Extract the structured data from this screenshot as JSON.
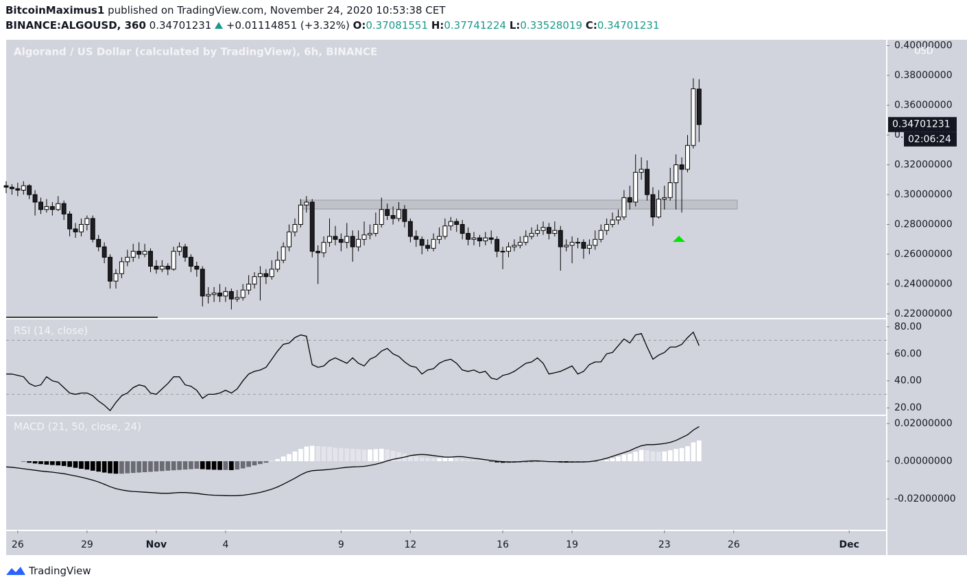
{
  "header": {
    "author": "BitcoinMaximus1",
    "published": "published on TradingView.com, November 24, 2020 10:53:38 CET",
    "symbol": "BINANCE:ALGOUSD, 360",
    "change": "+0.01114851 (+3.32%)",
    "o_label": "O:",
    "h_label": "H:",
    "l_label": "L:",
    "c_label": "C:"
  },
  "footer": {
    "brand": "TradingView"
  },
  "chart_data": [
    {
      "type": "candlestick",
      "title": "Algorand / US Dollar (calculated by TradingView), 6h, BINANCE",
      "currency": "USD",
      "countdown": "02:06:24",
      "up_color": "#ffffff",
      "down_color": "#1e1e24",
      "wick_color": "#000000",
      "xlim": [
        0,
        152.5
      ],
      "xticks": [
        {
          "value": 2,
          "label": "26"
        },
        {
          "value": 14,
          "label": "29"
        },
        {
          "value": 26,
          "label": "Nov"
        },
        {
          "value": 38,
          "label": "4"
        },
        {
          "value": 58,
          "label": "9"
        },
        {
          "value": 70,
          "label": "12"
        },
        {
          "value": 86,
          "label": "16"
        },
        {
          "value": 98,
          "label": "19"
        },
        {
          "value": 114,
          "label": "23"
        },
        {
          "value": 126,
          "label": "26"
        },
        {
          "value": 146,
          "label": "Dec"
        }
      ],
      "ylim": [
        0.2168,
        0.4039
      ],
      "yticks": [
        {
          "value": 0.22,
          "label": "0.22000000"
        },
        {
          "value": 0.24,
          "label": "0.24000000"
        },
        {
          "value": 0.26,
          "label": "0.26000000"
        },
        {
          "value": 0.28,
          "label": "0.28000000"
        },
        {
          "value": 0.3,
          "label": "0.30000000"
        },
        {
          "value": 0.32,
          "label": "0.32000000"
        },
        {
          "value": 0.34,
          "label": "0.34000000"
        },
        {
          "value": 0.36,
          "label": "0.36000000"
        },
        {
          "value": 0.38,
          "label": "0.38000000"
        },
        {
          "value": 0.4,
          "label": "0.40000000"
        }
      ],
      "ohlc": [
        [
          0.306,
          0.309,
          0.301,
          0.305
        ],
        [
          0.305,
          0.307,
          0.3,
          0.304
        ],
        [
          0.304,
          0.308,
          0.299,
          0.303
        ],
        [
          0.303,
          0.309,
          0.3,
          0.306
        ],
        [
          0.306,
          0.307,
          0.297,
          0.3
        ],
        [
          0.3,
          0.303,
          0.286,
          0.295
        ],
        [
          0.295,
          0.298,
          0.287,
          0.29
        ],
        [
          0.29,
          0.297,
          0.288,
          0.292
        ],
        [
          0.292,
          0.295,
          0.286,
          0.29
        ],
        [
          0.29,
          0.299,
          0.289,
          0.294
        ],
        [
          0.294,
          0.296,
          0.283,
          0.287
        ],
        [
          0.287,
          0.289,
          0.272,
          0.277
        ],
        [
          0.277,
          0.281,
          0.271,
          0.275
        ],
        [
          0.275,
          0.284,
          0.272,
          0.28
        ],
        [
          0.28,
          0.286,
          0.276,
          0.284
        ],
        [
          0.284,
          0.286,
          0.268,
          0.27
        ],
        [
          0.27,
          0.273,
          0.262,
          0.265
        ],
        [
          0.265,
          0.268,
          0.254,
          0.258
        ],
        [
          0.258,
          0.26,
          0.237,
          0.242
        ],
        [
          0.242,
          0.25,
          0.237,
          0.247
        ],
        [
          0.247,
          0.258,
          0.244,
          0.255
        ],
        [
          0.255,
          0.263,
          0.252,
          0.258
        ],
        [
          0.258,
          0.267,
          0.255,
          0.262
        ],
        [
          0.262,
          0.268,
          0.257,
          0.26
        ],
        [
          0.26,
          0.267,
          0.258,
          0.262
        ],
        [
          0.262,
          0.264,
          0.248,
          0.252
        ],
        [
          0.252,
          0.256,
          0.247,
          0.25
        ],
        [
          0.25,
          0.256,
          0.248,
          0.252
        ],
        [
          0.252,
          0.254,
          0.246,
          0.25
        ],
        [
          0.25,
          0.265,
          0.249,
          0.262
        ],
        [
          0.262,
          0.268,
          0.259,
          0.265
        ],
        [
          0.265,
          0.267,
          0.255,
          0.258
        ],
        [
          0.258,
          0.26,
          0.248,
          0.252
        ],
        [
          0.252,
          0.255,
          0.245,
          0.25
        ],
        [
          0.25,
          0.252,
          0.225,
          0.232
        ],
        [
          0.232,
          0.238,
          0.227,
          0.233
        ],
        [
          0.233,
          0.238,
          0.228,
          0.234
        ],
        [
          0.234,
          0.24,
          0.228,
          0.232
        ],
        [
          0.232,
          0.238,
          0.228,
          0.235
        ],
        [
          0.235,
          0.237,
          0.223,
          0.23
        ],
        [
          0.23,
          0.236,
          0.228,
          0.231
        ],
        [
          0.231,
          0.24,
          0.229,
          0.236
        ],
        [
          0.236,
          0.246,
          0.233,
          0.24
        ],
        [
          0.24,
          0.248,
          0.237,
          0.245
        ],
        [
          0.245,
          0.252,
          0.229,
          0.247
        ],
        [
          0.247,
          0.25,
          0.24,
          0.245
        ],
        [
          0.245,
          0.256,
          0.243,
          0.25
        ],
        [
          0.25,
          0.262,
          0.248,
          0.256
        ],
        [
          0.256,
          0.268,
          0.254,
          0.265
        ],
        [
          0.265,
          0.28,
          0.262,
          0.275
        ],
        [
          0.275,
          0.284,
          0.272,
          0.28
        ],
        [
          0.28,
          0.297,
          0.278,
          0.293
        ],
        [
          0.293,
          0.299,
          0.288,
          0.295
        ],
        [
          0.295,
          0.297,
          0.258,
          0.262
        ],
        [
          0.262,
          0.266,
          0.24,
          0.261
        ],
        [
          0.261,
          0.272,
          0.258,
          0.268
        ],
        [
          0.268,
          0.284,
          0.265,
          0.272
        ],
        [
          0.272,
          0.279,
          0.266,
          0.27
        ],
        [
          0.27,
          0.274,
          0.262,
          0.268
        ],
        [
          0.268,
          0.281,
          0.264,
          0.272
        ],
        [
          0.272,
          0.276,
          0.255,
          0.265
        ],
        [
          0.265,
          0.276,
          0.262,
          0.27
        ],
        [
          0.27,
          0.282,
          0.266,
          0.273
        ],
        [
          0.273,
          0.28,
          0.27,
          0.274
        ],
        [
          0.274,
          0.288,
          0.272,
          0.28
        ],
        [
          0.28,
          0.298,
          0.278,
          0.29
        ],
        [
          0.29,
          0.294,
          0.283,
          0.286
        ],
        [
          0.286,
          0.292,
          0.28,
          0.284
        ],
        [
          0.284,
          0.295,
          0.282,
          0.29
        ],
        [
          0.29,
          0.293,
          0.278,
          0.282
        ],
        [
          0.282,
          0.284,
          0.268,
          0.272
        ],
        [
          0.272,
          0.276,
          0.265,
          0.27
        ],
        [
          0.27,
          0.272,
          0.26,
          0.266
        ],
        [
          0.266,
          0.27,
          0.262,
          0.264
        ],
        [
          0.264,
          0.274,
          0.262,
          0.27
        ],
        [
          0.27,
          0.278,
          0.267,
          0.272
        ],
        [
          0.272,
          0.284,
          0.27,
          0.279
        ],
        [
          0.279,
          0.285,
          0.276,
          0.282
        ],
        [
          0.282,
          0.284,
          0.275,
          0.28
        ],
        [
          0.28,
          0.283,
          0.27,
          0.274
        ],
        [
          0.274,
          0.278,
          0.266,
          0.27
        ],
        [
          0.27,
          0.275,
          0.266,
          0.271
        ],
        [
          0.271,
          0.273,
          0.265,
          0.269
        ],
        [
          0.269,
          0.275,
          0.266,
          0.271
        ],
        [
          0.271,
          0.276,
          0.267,
          0.27
        ],
        [
          0.27,
          0.272,
          0.258,
          0.262
        ],
        [
          0.262,
          0.265,
          0.25,
          0.262
        ],
        [
          0.262,
          0.268,
          0.258,
          0.265
        ],
        [
          0.265,
          0.27,
          0.262,
          0.266
        ],
        [
          0.266,
          0.272,
          0.264,
          0.268
        ],
        [
          0.268,
          0.276,
          0.266,
          0.272
        ],
        [
          0.272,
          0.278,
          0.27,
          0.274
        ],
        [
          0.274,
          0.28,
          0.272,
          0.276
        ],
        [
          0.276,
          0.282,
          0.273,
          0.278
        ],
        [
          0.278,
          0.281,
          0.27,
          0.274
        ],
        [
          0.274,
          0.282,
          0.272,
          0.276
        ],
        [
          0.276,
          0.279,
          0.249,
          0.265
        ],
        [
          0.265,
          0.27,
          0.262,
          0.266
        ],
        [
          0.266,
          0.272,
          0.254,
          0.268
        ],
        [
          0.268,
          0.271,
          0.264,
          0.268
        ],
        [
          0.268,
          0.27,
          0.257,
          0.264
        ],
        [
          0.264,
          0.27,
          0.26,
          0.266
        ],
        [
          0.266,
          0.276,
          0.263,
          0.27
        ],
        [
          0.27,
          0.28,
          0.268,
          0.276
        ],
        [
          0.276,
          0.284,
          0.273,
          0.28
        ],
        [
          0.28,
          0.288,
          0.278,
          0.283
        ],
        [
          0.283,
          0.29,
          0.28,
          0.285
        ],
        [
          0.285,
          0.303,
          0.283,
          0.298
        ],
        [
          0.298,
          0.306,
          0.29,
          0.295
        ],
        [
          0.295,
          0.327,
          0.292,
          0.315
        ],
        [
          0.315,
          0.325,
          0.31,
          0.317
        ],
        [
          0.317,
          0.323,
          0.296,
          0.3
        ],
        [
          0.3,
          0.305,
          0.279,
          0.285
        ],
        [
          0.285,
          0.303,
          0.284,
          0.297
        ],
        [
          0.297,
          0.306,
          0.29,
          0.298
        ],
        [
          0.298,
          0.318,
          0.296,
          0.308
        ],
        [
          0.308,
          0.327,
          0.29,
          0.32
        ],
        [
          0.32,
          0.325,
          0.288,
          0.317
        ],
        [
          0.317,
          0.34,
          0.315,
          0.333
        ],
        [
          0.333,
          0.378,
          0.331,
          0.371
        ],
        [
          0.37081551,
          0.37741224,
          0.33528019,
          0.34701231
        ]
      ]
    },
    {
      "type": "line",
      "title": "RSI (14, close)",
      "color": "#000000",
      "levels": [
        30,
        70
      ],
      "ylim": [
        15,
        86
      ],
      "yticks": [
        {
          "value": 20,
          "label": "20.00"
        },
        {
          "value": 40,
          "label": "40.00"
        },
        {
          "value": 60,
          "label": "60.00"
        },
        {
          "value": 80,
          "label": "80.00"
        }
      ],
      "values": [
        45,
        45,
        44,
        43,
        38,
        36,
        37,
        43,
        40,
        39,
        35,
        31,
        30,
        31,
        31,
        29,
        25,
        22,
        18,
        24,
        29,
        31,
        35,
        37,
        36,
        31,
        30,
        34,
        38,
        43,
        43,
        37,
        36,
        33,
        27,
        30,
        30,
        31,
        33,
        31,
        34,
        40,
        45,
        47,
        48,
        50,
        56,
        62,
        67,
        68,
        72,
        74,
        73,
        52,
        50,
        51,
        55,
        57,
        55,
        53,
        57,
        53,
        51,
        56,
        58,
        62,
        64,
        60,
        58,
        54,
        51,
        50,
        45,
        48,
        49,
        53,
        55,
        56,
        53,
        48,
        47,
        48,
        46,
        47,
        42,
        41,
        44,
        45,
        47,
        50,
        53,
        54,
        57,
        53,
        45,
        46,
        47,
        49,
        51,
        45,
        47,
        52,
        54,
        54,
        60,
        61,
        66,
        71,
        68,
        74,
        75,
        65,
        56,
        59,
        61,
        65,
        65,
        67,
        72,
        76,
        66
      ]
    },
    {
      "type": "macd",
      "title": "MACD (21, 50, close, 24)",
      "line_color": "#000000",
      "histogram_colors": {
        "positive_rising": "#ffffff",
        "positive_falling": "#e4e5ec",
        "negative_falling": "#000000",
        "negative_rising": "#6b6b74"
      },
      "ylim": [
        -0.0363,
        0.0247
      ],
      "yticks": [
        {
          "value": -0.02,
          "label": "-0.02000000"
        },
        {
          "value": 0,
          "label": "0.00000000"
        },
        {
          "value": 0.02,
          "label": "0.02000000"
        }
      ],
      "histogram": [
        null,
        null,
        null,
        -0.0003,
        -0.0008,
        -0.0012,
        -0.0015,
        -0.0018,
        -0.002,
        -0.0022,
        -0.0025,
        -0.003,
        -0.0035,
        -0.004,
        -0.0044,
        -0.005,
        -0.0055,
        -0.006,
        -0.0064,
        -0.0066,
        -0.0066,
        -0.0064,
        -0.0062,
        -0.006,
        -0.0058,
        -0.0056,
        -0.0054,
        -0.0052,
        -0.005,
        -0.0048,
        -0.0046,
        -0.0044,
        -0.0042,
        -0.004,
        -0.0042,
        -0.0044,
        -0.0045,
        -0.0046,
        -0.0046,
        -0.0047,
        -0.0044,
        -0.0038,
        -0.003,
        -0.0022,
        -0.0015,
        -0.0008,
        0.0002,
        0.0012,
        0.0025,
        0.0038,
        0.0052,
        0.0065,
        0.0078,
        0.0082,
        0.008,
        0.0078,
        0.0076,
        0.0072,
        0.007,
        0.0068,
        0.0066,
        0.0064,
        0.0062,
        0.0062,
        0.0064,
        0.0066,
        0.0062,
        0.0055,
        0.0048,
        0.004,
        0.0032,
        0.0026,
        0.002,
        0.0018,
        0.0016,
        0.0016,
        0.0018,
        0.0018,
        0.0016,
        0.0012,
        0.0008,
        0.0006,
        0.0004,
        0.0002,
        -0.0002,
        -0.0006,
        -0.0008,
        -0.0008,
        -0.0007,
        -0.0006,
        -0.0005,
        -0.0004,
        -0.0003,
        -0.0002,
        -0.0003,
        -0.0004,
        -0.0006,
        -0.0007,
        -0.0007,
        -0.0006,
        -0.0005,
        -0.0004,
        -0.0002,
        0.0002,
        0.0008,
        0.0015,
        0.0025,
        0.0035,
        0.004,
        0.005,
        0.006,
        0.0058,
        0.0052,
        0.005,
        0.0052,
        0.0058,
        0.0065,
        0.007,
        0.008,
        0.01,
        0.011
      ],
      "values": [
        -0.003,
        -0.0032,
        -0.0036,
        -0.004,
        -0.0044,
        -0.0048,
        -0.0052,
        -0.0055,
        -0.0058,
        -0.0062,
        -0.0066,
        -0.0072,
        -0.0078,
        -0.0085,
        -0.0092,
        -0.01,
        -0.011,
        -0.0122,
        -0.0135,
        -0.0145,
        -0.0152,
        -0.0157,
        -0.016,
        -0.0162,
        -0.0164,
        -0.0166,
        -0.0168,
        -0.017,
        -0.017,
        -0.0168,
        -0.0166,
        -0.0166,
        -0.0168,
        -0.017,
        -0.0175,
        -0.0178,
        -0.018,
        -0.0181,
        -0.0182,
        -0.0183,
        -0.0182,
        -0.018,
        -0.0176,
        -0.0171,
        -0.0165,
        -0.0157,
        -0.0148,
        -0.0136,
        -0.0122,
        -0.0106,
        -0.009,
        -0.0072,
        -0.0058,
        -0.005,
        -0.0048,
        -0.0046,
        -0.0043,
        -0.004,
        -0.0036,
        -0.0032,
        -0.003,
        -0.0029,
        -0.0027,
        -0.0022,
        -0.0016,
        -0.0008,
        0.0002,
        0.001,
        0.0016,
        0.0022,
        0.003,
        0.0034,
        0.0036,
        0.0034,
        0.003,
        0.0026,
        0.0022,
        0.0022,
        0.0024,
        0.0024,
        0.002,
        0.0016,
        0.0012,
        0.0008,
        0.0004,
        0.0,
        -0.0002,
        -0.0004,
        -0.0004,
        -0.0002,
        0.0,
        0.0002,
        0.0002,
        0.0,
        -0.0002,
        -0.0002,
        -0.0004,
        -0.0004,
        -0.0004,
        -0.0004,
        -0.0004,
        -0.0002,
        0.0002,
        0.0008,
        0.0016,
        0.0026,
        0.0036,
        0.0046,
        0.0056,
        0.007,
        0.0082,
        0.0088,
        0.0088,
        0.009,
        0.0094,
        0.01,
        0.011,
        0.0125,
        0.014,
        0.0165,
        0.0184
      ]
    }
  ]
}
